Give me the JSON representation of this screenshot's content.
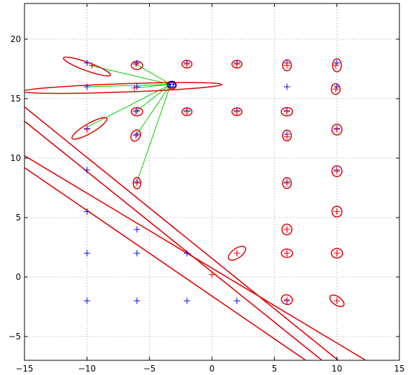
{
  "chart_data": {
    "type": "scatter",
    "xlim": [
      -15,
      15
    ],
    "ylim": [
      -7,
      23
    ],
    "xticks": [
      -15,
      -10,
      -5,
      0,
      5,
      10,
      15
    ],
    "yticks": [
      -5,
      0,
      5,
      10,
      15,
      20
    ],
    "xtick_labels": [
      "−15",
      "−10",
      "−5",
      "0",
      "5",
      "10",
      "15"
    ],
    "ytick_labels": [
      "−5",
      "0",
      "5",
      "10",
      "15",
      "20"
    ],
    "grid": true,
    "colors": {
      "landmarks": "#0000ff",
      "estimates": "#ff0000",
      "ellipses": "#e00000",
      "lines": "#e00000",
      "links": "#00cc00",
      "robot": "#0000cc"
    },
    "landmarks": [
      [
        -10,
        18
      ],
      [
        -6,
        18
      ],
      [
        -2,
        18
      ],
      [
        2,
        18
      ],
      [
        6,
        18
      ],
      [
        10,
        18
      ],
      [
        -10,
        16
      ],
      [
        -6,
        16
      ],
      [
        6,
        16
      ],
      [
        10,
        16
      ],
      [
        -6,
        14
      ],
      [
        -2,
        14
      ],
      [
        2,
        14
      ],
      [
        6,
        14
      ],
      [
        -10,
        12.5
      ],
      [
        -6,
        12
      ],
      [
        6,
        12
      ],
      [
        10,
        12.5
      ],
      [
        -10,
        9
      ],
      [
        10,
        9
      ],
      [
        -6,
        8
      ],
      [
        6,
        8
      ],
      [
        -10,
        5.5
      ],
      [
        10,
        5.5
      ],
      [
        -6,
        4
      ],
      [
        6,
        4
      ],
      [
        -10,
        2
      ],
      [
        -6,
        2
      ],
      [
        -2,
        2
      ],
      [
        2,
        2
      ],
      [
        6,
        2
      ],
      [
        10,
        2
      ],
      [
        -10,
        -2
      ],
      [
        -6,
        -2
      ],
      [
        -2,
        -2
      ],
      [
        2,
        -2
      ],
      [
        6,
        -2
      ],
      [
        10,
        -2
      ]
    ],
    "estimates": [
      [
        -9.6,
        17.8
      ],
      [
        -6.1,
        17.9
      ],
      [
        -2.0,
        17.9
      ],
      [
        2.0,
        17.9
      ],
      [
        6.0,
        17.8
      ],
      [
        9.9,
        17.8
      ],
      [
        -6.2,
        15.9
      ],
      [
        9.9,
        15.8
      ],
      [
        -6.1,
        13.9
      ],
      [
        -2.0,
        13.9
      ],
      [
        2.0,
        13.9
      ],
      [
        6.0,
        13.9
      ],
      [
        -10.0,
        12.4
      ],
      [
        -6.1,
        11.9
      ],
      [
        6.0,
        11.8
      ],
      [
        10.0,
        12.4
      ],
      [
        10.0,
        8.9
      ],
      [
        -6.0,
        7.9
      ],
      [
        6.0,
        7.9
      ],
      [
        10.0,
        5.5
      ],
      [
        6.0,
        4.0
      ],
      [
        2.0,
        2.0
      ],
      [
        6.0,
        2.0
      ],
      [
        10.0,
        2.0
      ],
      [
        6.0,
        -1.9
      ],
      [
        10.0,
        -2.0
      ],
      [
        0.0,
        0.2
      ]
    ],
    "ellipses": [
      {
        "c": [
          -10.0,
          17.7
        ],
        "a": 2.0,
        "b": 0.35,
        "deg": -20
      },
      {
        "c": [
          -6.0,
          17.8
        ],
        "a": 0.45,
        "b": 0.35,
        "deg": 0
      },
      {
        "c": [
          -2.0,
          17.9
        ],
        "a": 0.4,
        "b": 0.32,
        "deg": 0
      },
      {
        "c": [
          2.0,
          17.9
        ],
        "a": 0.4,
        "b": 0.32,
        "deg": 0
      },
      {
        "c": [
          6.0,
          17.8
        ],
        "a": 0.35,
        "b": 0.45,
        "deg": 0
      },
      {
        "c": [
          10.0,
          17.8
        ],
        "a": 0.35,
        "b": 0.55,
        "deg": 0
      },
      {
        "c": [
          -7.2,
          15.9
        ],
        "a": 8.0,
        "b": 0.35,
        "deg": 2
      },
      {
        "c": [
          -3.2,
          16.1
        ],
        "a": 0.35,
        "b": 0.28,
        "deg": 0
      },
      {
        "c": [
          9.9,
          15.8
        ],
        "a": 0.35,
        "b": 0.45,
        "deg": 0
      },
      {
        "c": [
          -6.0,
          13.9
        ],
        "a": 0.45,
        "b": 0.35,
        "deg": 0
      },
      {
        "c": [
          -2.0,
          13.9
        ],
        "a": 0.4,
        "b": 0.32,
        "deg": 0
      },
      {
        "c": [
          2.0,
          13.9
        ],
        "a": 0.4,
        "b": 0.32,
        "deg": 0
      },
      {
        "c": [
          6.0,
          13.9
        ],
        "a": 0.45,
        "b": 0.35,
        "deg": 0
      },
      {
        "c": [
          -9.8,
          12.5
        ],
        "a": 1.6,
        "b": 0.4,
        "deg": 30
      },
      {
        "c": [
          -6.1,
          11.9
        ],
        "a": 0.35,
        "b": 0.5,
        "deg": -30
      },
      {
        "c": [
          6.0,
          11.9
        ],
        "a": 0.35,
        "b": 0.45,
        "deg": 0
      },
      {
        "c": [
          10.0,
          12.4
        ],
        "a": 0.4,
        "b": 0.45,
        "deg": 0
      },
      {
        "c": [
          10.0,
          8.9
        ],
        "a": 0.4,
        "b": 0.45,
        "deg": 0
      },
      {
        "c": [
          -6.0,
          7.9
        ],
        "a": 0.3,
        "b": 0.48,
        "deg": 0
      },
      {
        "c": [
          6.0,
          7.9
        ],
        "a": 0.35,
        "b": 0.45,
        "deg": 0
      },
      {
        "c": [
          10.0,
          5.5
        ],
        "a": 0.4,
        "b": 0.45,
        "deg": 0
      },
      {
        "c": [
          6.0,
          4.0
        ],
        "a": 0.4,
        "b": 0.45,
        "deg": 0
      },
      {
        "c": [
          2.0,
          2.0
        ],
        "a": 0.8,
        "b": 0.4,
        "deg": 35
      },
      {
        "c": [
          6.0,
          2.0
        ],
        "a": 0.45,
        "b": 0.35,
        "deg": 0
      },
      {
        "c": [
          10.0,
          2.0
        ],
        "a": 0.45,
        "b": 0.4,
        "deg": 0
      },
      {
        "c": [
          6.0,
          -1.9
        ],
        "a": 0.45,
        "b": 0.4,
        "deg": -20
      },
      {
        "c": [
          10.0,
          -2.0
        ],
        "a": 0.65,
        "b": 0.35,
        "deg": -35
      }
    ],
    "lines": [
      [
        [
          -15,
          14.3
        ],
        [
          10.1,
          -7
        ]
      ],
      [
        [
          -15,
          13.1
        ],
        [
          8.8,
          -7
        ]
      ],
      [
        [
          -15,
          10.2
        ],
        [
          12.3,
          -7
        ]
      ],
      [
        [
          -15,
          9.2
        ],
        [
          7.5,
          -7
        ]
      ]
    ],
    "robot": [
      -3.3,
      16.2
    ],
    "links": [
      [
        -9.8,
        17.8
      ],
      [
        -6.1,
        17.9
      ],
      [
        -9.9,
        16.0
      ],
      [
        -6.2,
        15.9
      ],
      [
        -6.0,
        14.0
      ],
      [
        -10.0,
        12.6
      ],
      [
        -6.0,
        12.0
      ],
      [
        -6.0,
        8.0
      ]
    ]
  }
}
